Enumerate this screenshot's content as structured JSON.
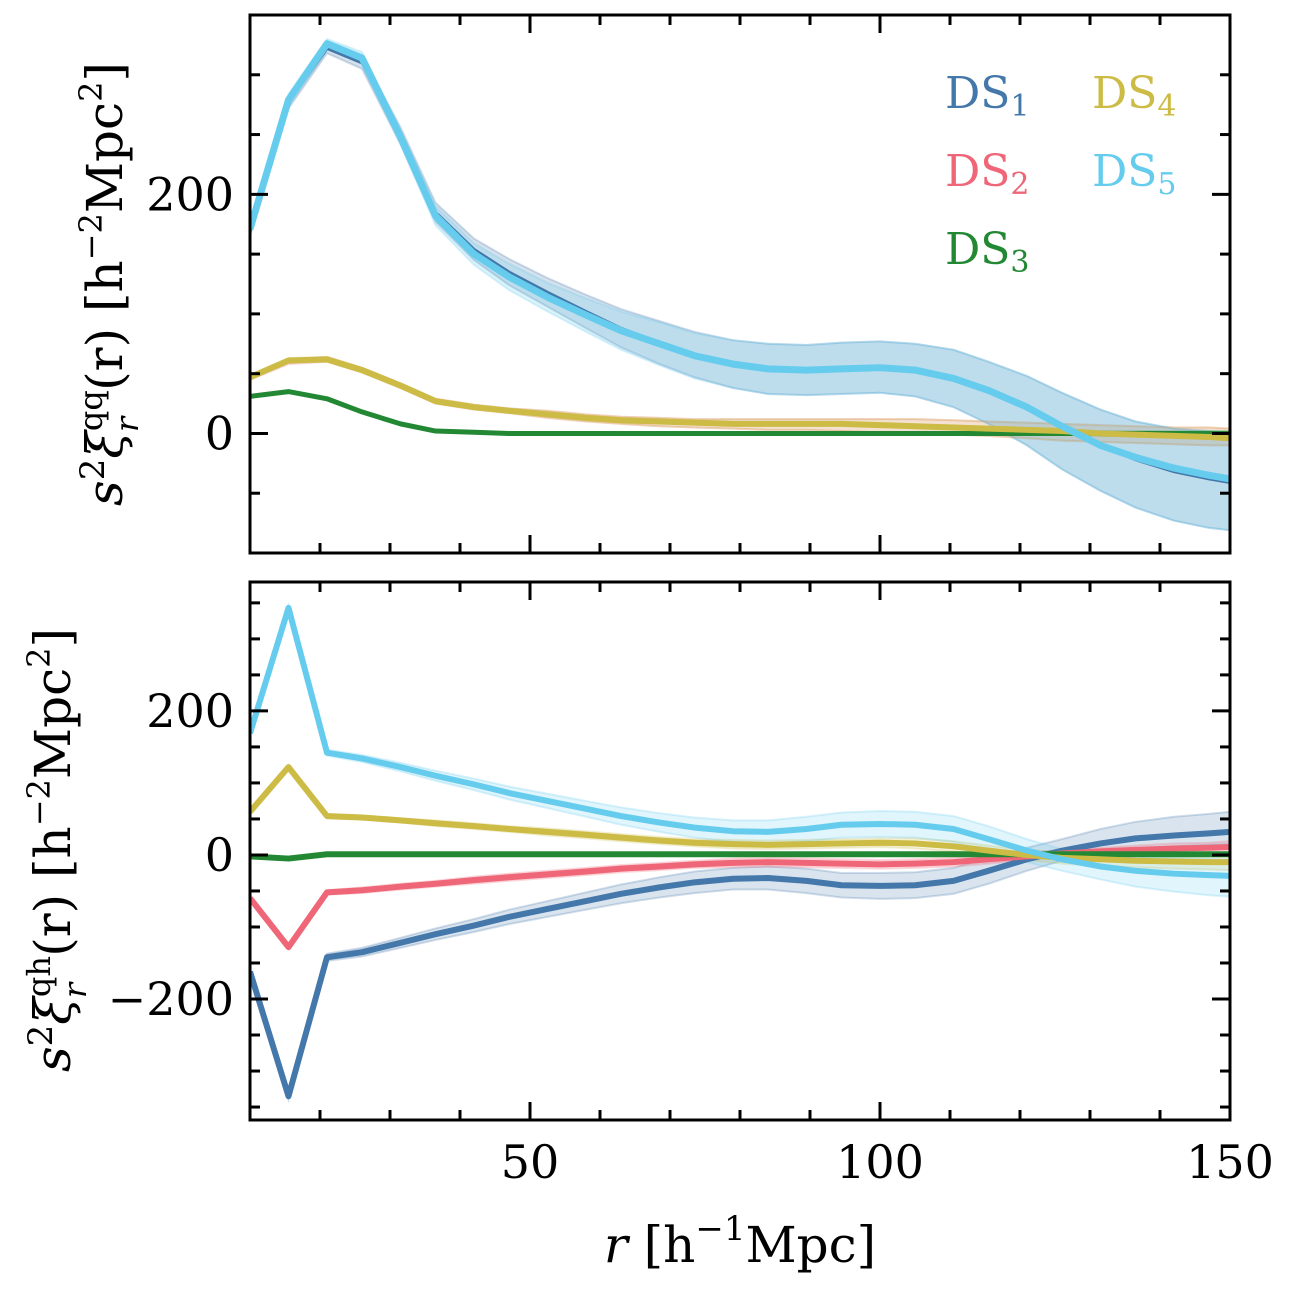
{
  "chart_data": [
    {
      "type": "line",
      "panel": "top",
      "ylabel": "s²ξ_r^qq(r) [h⁻²Mpc²]",
      "ylabel_parts": {
        "main": "s",
        "sup1": "2",
        "xi": "ξ",
        "xi_sup": "qq",
        "xi_sub": "r",
        "arg": "(r) [h",
        "unit_sup": "−2",
        "unit_tail": "Mpc",
        "unit_tail_sup": "2",
        "close": "]"
      },
      "xlim": [
        10,
        150
      ],
      "ylim": [
        -100,
        350
      ],
      "yticks": [
        0,
        200
      ],
      "ytick_labels": [
        "0",
        "200"
      ],
      "yminor_step": 50,
      "grid": false,
      "legend_location": "top-right",
      "x": [
        10,
        15.5,
        21,
        26,
        31.5,
        36.5,
        42,
        47,
        52.5,
        58,
        63,
        68.5,
        73.5,
        79,
        84,
        89.5,
        94.5,
        100,
        105,
        110.5,
        115.5,
        121,
        126,
        131.5,
        136.5,
        142,
        147,
        150
      ],
      "series": [
        {
          "name": "DS1",
          "color": "#4477AA",
          "width": 2,
          "values": [
            169,
            277,
            322,
            310,
            248,
            185,
            154,
            135,
            118,
            102,
            88,
            76,
            66,
            58,
            54,
            53,
            54,
            55,
            53,
            46,
            36,
            22,
            6,
            -10,
            -22,
            -32,
            -38,
            -41
          ],
          "band_lo": [
            165,
            272,
            318,
            305,
            242,
            177,
            145,
            124,
            106,
            88,
            72,
            58,
            47,
            38,
            33,
            32,
            33,
            34,
            31,
            22,
            8,
            -10,
            -30,
            -48,
            -62,
            -73,
            -79,
            -81
          ],
          "band_hi": [
            173,
            282,
            328,
            316,
            256,
            193,
            163,
            146,
            130,
            116,
            104,
            94,
            85,
            78,
            75,
            74,
            76,
            77,
            75,
            70,
            60,
            48,
            34,
            20,
            10,
            4,
            2,
            1
          ]
        },
        {
          "name": "DS2",
          "color": "#EE6677",
          "width": 2,
          "values": [
            47,
            60,
            62,
            53,
            40,
            27,
            22,
            19,
            16,
            13,
            11,
            10,
            9,
            8,
            8,
            8,
            8,
            7,
            6,
            5,
            4,
            3,
            2,
            1,
            0,
            -1,
            -2,
            -3
          ],
          "band_lo": [
            45,
            58,
            60,
            51,
            38,
            25,
            20,
            17,
            13,
            10,
            8,
            6,
            5,
            4,
            3,
            3,
            2,
            1,
            0,
            -1,
            -2,
            -4,
            -6,
            -7,
            -8,
            -9,
            -10,
            -10
          ],
          "band_hi": [
            49,
            62,
            64,
            55,
            42,
            29,
            24,
            21,
            19,
            16,
            14,
            13,
            12,
            12,
            12,
            12,
            12,
            12,
            12,
            11,
            10,
            9,
            8,
            7,
            6,
            5,
            5,
            4
          ]
        },
        {
          "name": "DS3",
          "color": "#228833",
          "width": 4,
          "values": [
            31,
            35,
            29,
            18,
            8,
            2,
            1,
            0,
            0,
            0,
            0,
            0,
            0,
            0,
            0,
            0,
            0,
            0,
            0,
            0,
            0,
            0,
            0,
            0,
            0,
            0,
            0,
            0
          ],
          "band_lo": [
            30,
            34,
            28,
            17,
            7,
            1,
            0,
            -1,
            -1,
            -1,
            -1,
            -1,
            -1,
            -1,
            -1,
            -1,
            -1,
            -1,
            -1,
            -1,
            -1,
            -1,
            -1,
            -2,
            -2,
            -2,
            -2,
            -2
          ],
          "band_hi": [
            32,
            36,
            30,
            19,
            9,
            3,
            2,
            1,
            1,
            1,
            1,
            1,
            1,
            1,
            1,
            1,
            1,
            1,
            1,
            1,
            1,
            1,
            1,
            2,
            2,
            2,
            2,
            2
          ]
        },
        {
          "name": "DS4",
          "color": "#CCBB44",
          "width": 5,
          "values": [
            47,
            61,
            62,
            53,
            40,
            27,
            22,
            19,
            16,
            13,
            11,
            10,
            9,
            8,
            8,
            8,
            8,
            7,
            6,
            5,
            4,
            3,
            2,
            0,
            -1,
            -2,
            -3,
            -4
          ],
          "band_lo": [
            45,
            59,
            60,
            51,
            38,
            25,
            20,
            17,
            13,
            10,
            8,
            6,
            5,
            4,
            3,
            3,
            2,
            1,
            0,
            -1,
            -2,
            -4,
            -6,
            -7,
            -8,
            -9,
            -10,
            -10
          ],
          "band_hi": [
            49,
            63,
            64,
            55,
            42,
            29,
            24,
            21,
            19,
            16,
            14,
            13,
            12,
            12,
            12,
            12,
            12,
            12,
            12,
            11,
            10,
            9,
            8,
            7,
            6,
            5,
            5,
            4
          ]
        },
        {
          "name": "DS5",
          "color": "#66CCEE",
          "width": 6,
          "values": [
            171,
            279,
            326,
            314,
            248,
            182,
            150,
            131,
            114,
            99,
            86,
            75,
            65,
            58,
            54,
            53,
            54,
            55,
            53,
            46,
            36,
            22,
            6,
            -10,
            -20,
            -29,
            -35,
            -38
          ],
          "band_lo": [
            167,
            274,
            322,
            309,
            242,
            174,
            141,
            120,
            102,
            85,
            70,
            57,
            46,
            38,
            33,
            32,
            33,
            34,
            31,
            22,
            8,
            -10,
            -30,
            -48,
            -62,
            -73,
            -79,
            -81
          ],
          "band_hi": [
            175,
            284,
            330,
            319,
            254,
            190,
            159,
            142,
            126,
            113,
            102,
            93,
            84,
            78,
            75,
            74,
            76,
            77,
            75,
            70,
            60,
            48,
            34,
            20,
            10,
            4,
            2,
            1
          ]
        }
      ]
    },
    {
      "type": "line",
      "panel": "bottom",
      "ylabel": "s²ξ_r^qh(r) [h⁻²Mpc²]",
      "ylabel_parts": {
        "main": "s",
        "sup1": "2",
        "xi": "ξ",
        "xi_sup": "qh",
        "xi_sub": "r",
        "arg": "(r) [h",
        "unit_sup": "−2",
        "unit_tail": "Mpc",
        "unit_tail_sup": "2",
        "close": "]"
      },
      "xlabel": "r [h⁻¹Mpc]",
      "xlabel_parts": {
        "var": "r",
        "open": " [h",
        "sup": "−1",
        "tail": "Mpc]"
      },
      "xlim": [
        10,
        150
      ],
      "ylim": [
        -368,
        379
      ],
      "xticks": [
        50,
        100,
        150
      ],
      "xtick_labels": [
        "50",
        "100",
        "150"
      ],
      "xminor_step": 10,
      "yticks": [
        -200,
        0,
        200
      ],
      "ytick_labels": [
        "−200",
        "0",
        "200"
      ],
      "yminor_step": 50,
      "grid": false,
      "x": [
        10,
        15.5,
        21,
        26,
        31.5,
        36.5,
        42,
        47,
        52.5,
        58,
        63,
        68.5,
        73.5,
        79,
        84,
        89.5,
        94.5,
        100,
        105,
        110.5,
        115.5,
        121,
        126,
        131.5,
        136.5,
        142,
        147,
        150
      ],
      "series": [
        {
          "name": "DS1",
          "color": "#4477AA",
          "width": 6,
          "values": [
            -162,
            -335,
            -142,
            -135,
            -122,
            -110,
            -98,
            -86,
            -75,
            -64,
            -54,
            -45,
            -38,
            -33,
            -32,
            -36,
            -42,
            -43,
            -42,
            -36,
            -22,
            -6,
            6,
            16,
            23,
            27,
            30,
            32
          ],
          "band_lo": [
            -166,
            -340,
            -147,
            -141,
            -129,
            -118,
            -107,
            -96,
            -86,
            -76,
            -67,
            -59,
            -53,
            -48,
            -48,
            -53,
            -59,
            -61,
            -60,
            -54,
            -40,
            -22,
            -8,
            2,
            8,
            12,
            14,
            15
          ],
          "band_hi": [
            -158,
            -330,
            -137,
            -129,
            -115,
            -102,
            -89,
            -76,
            -64,
            -52,
            -41,
            -31,
            -23,
            -18,
            -16,
            -19,
            -25,
            -25,
            -24,
            -18,
            -4,
            10,
            22,
            36,
            46,
            53,
            57,
            60
          ]
        },
        {
          "name": "DS2",
          "color": "#EE6677",
          "width": 6,
          "values": [
            -60,
            -128,
            -52,
            -49,
            -44,
            -40,
            -35,
            -31,
            -27,
            -23,
            -19,
            -16,
            -13,
            -11,
            -10,
            -11,
            -12,
            -13,
            -12,
            -10,
            -6,
            -2,
            2,
            5,
            7,
            9,
            10,
            11
          ],
          "band_lo": [
            -63,
            -131,
            -55,
            -53,
            -48,
            -44,
            -40,
            -36,
            -32,
            -28,
            -24,
            -21,
            -18,
            -17,
            -16,
            -17,
            -18,
            -19,
            -18,
            -16,
            -12,
            -7,
            -3,
            0,
            1,
            2,
            3,
            3
          ],
          "band_hi": [
            -57,
            -125,
            -49,
            -45,
            -40,
            -36,
            -30,
            -26,
            -22,
            -18,
            -14,
            -11,
            -8,
            -5,
            -4,
            -5,
            -6,
            -7,
            -6,
            -4,
            0,
            3,
            7,
            10,
            13,
            16,
            17,
            19
          ]
        },
        {
          "name": "DS3",
          "color": "#228833",
          "width": 6,
          "values": [
            -2,
            -5,
            1,
            1,
            1,
            1,
            1,
            1,
            1,
            1,
            1,
            1,
            1,
            1,
            1,
            1,
            1,
            1,
            1,
            1,
            1,
            1,
            1,
            1,
            1,
            1,
            1,
            1
          ],
          "band_lo": [
            -3,
            -6,
            0,
            0,
            0,
            0,
            0,
            0,
            0,
            0,
            0,
            0,
            0,
            0,
            0,
            0,
            0,
            0,
            0,
            0,
            0,
            0,
            0,
            -1,
            -1,
            -1,
            -1,
            -1
          ],
          "band_hi": [
            -1,
            -4,
            2,
            2,
            2,
            2,
            2,
            2,
            2,
            2,
            2,
            2,
            2,
            2,
            2,
            2,
            2,
            2,
            2,
            2,
            2,
            2,
            2,
            3,
            3,
            3,
            3,
            3
          ]
        },
        {
          "name": "DS4",
          "color": "#CCBB44",
          "width": 6,
          "values": [
            60,
            122,
            54,
            52,
            48,
            44,
            40,
            36,
            32,
            28,
            24,
            20,
            17,
            15,
            14,
            15,
            16,
            17,
            16,
            12,
            6,
            0,
            -4,
            -6,
            -8,
            -9,
            -10,
            -10
          ],
          "band_lo": [
            57,
            119,
            51,
            49,
            45,
            40,
            36,
            32,
            27,
            23,
            19,
            15,
            12,
            9,
            8,
            9,
            10,
            11,
            9,
            5,
            -1,
            -7,
            -12,
            -15,
            -17,
            -19,
            -20,
            -21
          ],
          "band_hi": [
            63,
            125,
            57,
            55,
            51,
            48,
            44,
            40,
            37,
            33,
            29,
            25,
            22,
            21,
            20,
            21,
            22,
            23,
            23,
            19,
            13,
            7,
            4,
            3,
            1,
            0,
            0,
            0
          ]
        },
        {
          "name": "DS5",
          "color": "#66CCEE",
          "width": 6,
          "values": [
            169,
            343,
            142,
            134,
            122,
            110,
            98,
            86,
            75,
            64,
            54,
            45,
            38,
            33,
            32,
            36,
            42,
            43,
            42,
            36,
            22,
            6,
            -6,
            -16,
            -22,
            -26,
            -28,
            -29
          ],
          "band_lo": [
            166,
            339,
            138,
            129,
            116,
            103,
            90,
            77,
            65,
            53,
            42,
            32,
            24,
            18,
            16,
            19,
            24,
            25,
            24,
            18,
            4,
            -10,
            -22,
            -34,
            -44,
            -51,
            -56,
            -58
          ],
          "band_hi": [
            172,
            347,
            146,
            139,
            128,
            117,
            106,
            95,
            85,
            75,
            66,
            58,
            52,
            48,
            48,
            53,
            59,
            61,
            60,
            54,
            40,
            22,
            8,
            2,
            -2,
            -4,
            -5,
            -6
          ]
        }
      ]
    }
  ],
  "legend": {
    "items": [
      {
        "label": "DS",
        "sub": "1",
        "color": "#4477AA"
      },
      {
        "label": "DS",
        "sub": "2",
        "color": "#EE6677"
      },
      {
        "label": "DS",
        "sub": "3",
        "color": "#228833"
      },
      {
        "label": "DS",
        "sub": "4",
        "color": "#CCBB44"
      },
      {
        "label": "DS",
        "sub": "5",
        "color": "#66CCEE"
      }
    ]
  }
}
